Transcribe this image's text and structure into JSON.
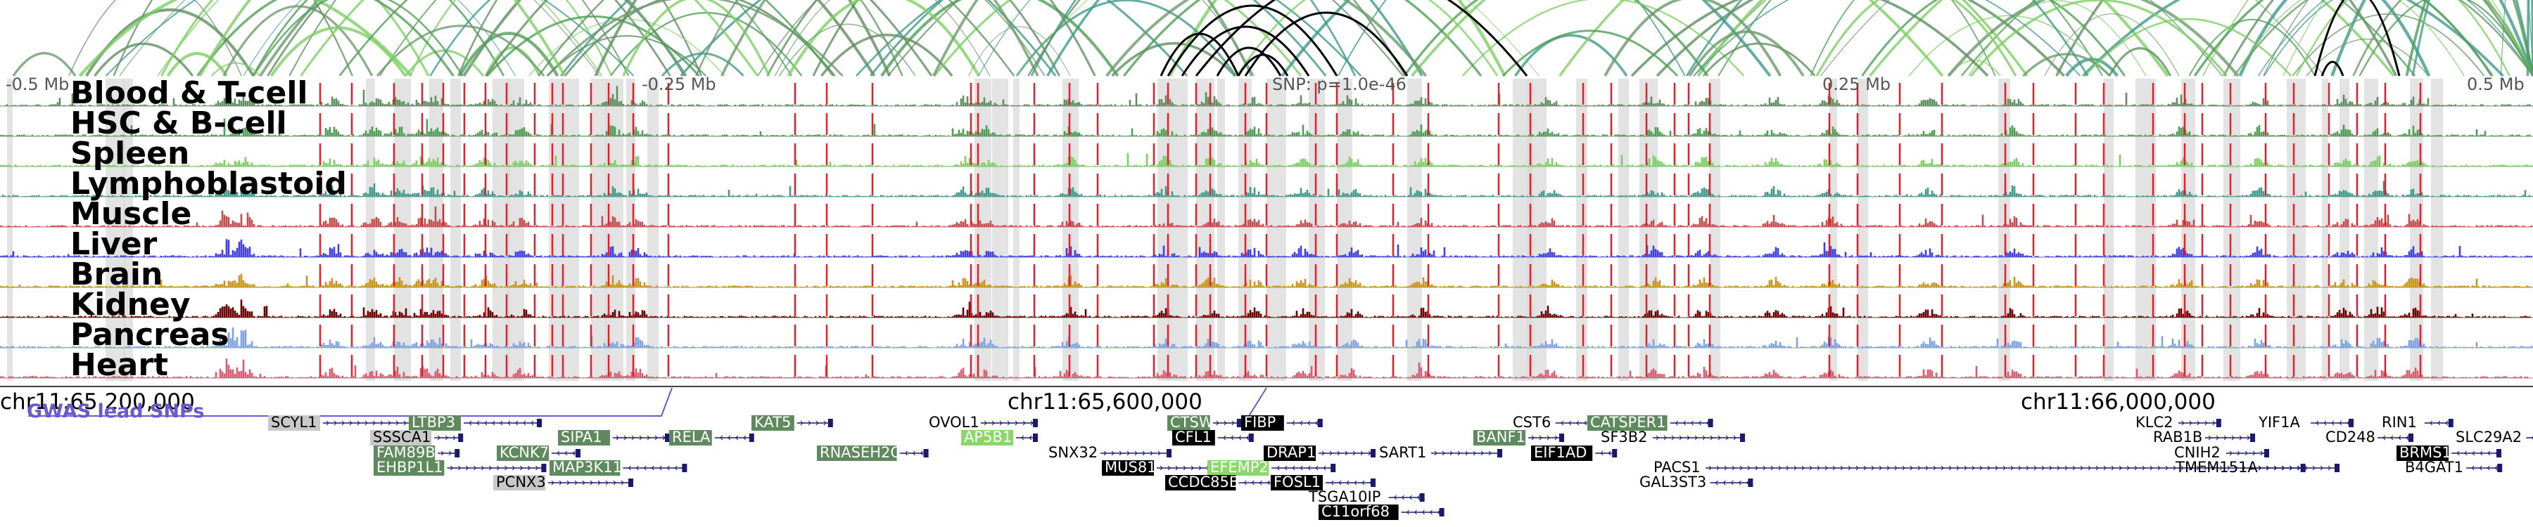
{
  "ruler": {
    "ticks": [
      "-0.5 Mb",
      "-0.25 Mb",
      "0.25 Mb",
      "0.5 Mb"
    ],
    "snp_label": "SNP: p=1.0e-46"
  },
  "tracks": [
    {
      "name": "Blood & T-cell",
      "color": "#5f8f60"
    },
    {
      "name": "HSC & B-cell",
      "color": "#4f9e55"
    },
    {
      "name": "Spleen",
      "color": "#7ccf63"
    },
    {
      "name": "Lymphoblastoid",
      "color": "#3e9a8a"
    },
    {
      "name": "Muscle",
      "color": "#c0504d"
    },
    {
      "name": "Liver",
      "color": "#4040e0"
    },
    {
      "name": "Brain",
      "color": "#c8941e"
    },
    {
      "name": "Kidney",
      "color": "#6b0000"
    },
    {
      "name": "Pancreas",
      "color": "#7fa3e0"
    },
    {
      "name": "Heart",
      "color": "#d85a6e"
    }
  ],
  "coordinates": [
    "chr11:65,200,000",
    "chr11:65,600,000",
    "chr11:66,000,000"
  ],
  "gwas_label": "GWAS lead SNPs",
  "genes": [
    {
      "name": "SCYL1",
      "style": "grey"
    },
    {
      "name": "LTBP3",
      "style": "green"
    },
    {
      "name": "SSSCA1",
      "style": "grey"
    },
    {
      "name": "FAM89B",
      "style": "green"
    },
    {
      "name": "EHBP1L1",
      "style": "green"
    },
    {
      "name": "KCNK7",
      "style": "green"
    },
    {
      "name": "MAP3K11",
      "style": "green"
    },
    {
      "name": "PCNX3",
      "style": "grey"
    },
    {
      "name": "SIPA1",
      "style": "green"
    },
    {
      "name": "RELA",
      "style": "green"
    },
    {
      "name": "KAT5",
      "style": "green"
    },
    {
      "name": "RNASEH2C",
      "style": "green"
    },
    {
      "name": "OVOL1",
      "style": "plain"
    },
    {
      "name": "AP5B1",
      "style": "lightgreen"
    },
    {
      "name": "SNX32",
      "style": "plain"
    },
    {
      "name": "CTSW",
      "style": "green"
    },
    {
      "name": "FIBP",
      "style": "black"
    },
    {
      "name": "CFL1",
      "style": "black"
    },
    {
      "name": "MUS81",
      "style": "black"
    },
    {
      "name": "EFEMP2",
      "style": "lightgreen"
    },
    {
      "name": "DRAP1",
      "style": "black"
    },
    {
      "name": "CCDC85B",
      "style": "black"
    },
    {
      "name": "FOSL1",
      "style": "black"
    },
    {
      "name": "TSGA10IP",
      "style": "plain"
    },
    {
      "name": "C11orf68",
      "style": "black"
    },
    {
      "name": "SART1",
      "style": "plain"
    },
    {
      "name": "CST6",
      "style": "plain"
    },
    {
      "name": "CATSPER1",
      "style": "green"
    },
    {
      "name": "BANF1",
      "style": "green"
    },
    {
      "name": "SF3B2",
      "style": "plain"
    },
    {
      "name": "EIF1AD",
      "style": "black"
    },
    {
      "name": "PACS1",
      "style": "plain"
    },
    {
      "name": "GAL3ST3",
      "style": "plain"
    },
    {
      "name": "KLC2",
      "style": "plain"
    },
    {
      "name": "RAB1B",
      "style": "plain"
    },
    {
      "name": "CNIH2",
      "style": "plain"
    },
    {
      "name": "TMEM151A",
      "style": "plain"
    },
    {
      "name": "YIF1A",
      "style": "plain"
    },
    {
      "name": "CD248",
      "style": "plain"
    },
    {
      "name": "RIN1",
      "style": "plain"
    },
    {
      "name": "BRMS1",
      "style": "black"
    },
    {
      "name": "B4GAT1",
      "style": "plain"
    },
    {
      "name": "SLC29A2",
      "style": "plain"
    }
  ],
  "colors": {
    "gene_green": "#5e8a5e",
    "gene_lightgreen": "#8bd86a",
    "gene_grey": "#c8c8c8",
    "gene_black": "#000000",
    "red_marker": "#e0202a",
    "grey_band": "#d9d9d9",
    "arc_black": "#000000",
    "gwas": "#6a5acd"
  }
}
